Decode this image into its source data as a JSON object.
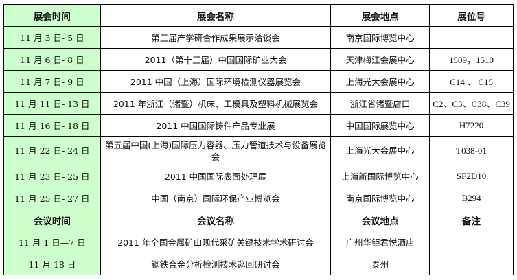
{
  "exhibitions": {
    "headers": [
      "展会时间",
      "展会名称",
      "展会地点",
      "展位号"
    ],
    "rows": [
      {
        "date": "11 月 3 日- 5 日",
        "name": "第三届产学研合作成果展示洽谈会",
        "venue": "南京国际博览中心",
        "booth": ""
      },
      {
        "date": "11 月 6 日- 8 日",
        "name": "2011（第十三届）中国国际矿业大会",
        "venue": "天津梅江会展中心",
        "booth": "1509，1510"
      },
      {
        "date": "11 月 7 日- 9 日",
        "name": "2011 中国（上海）国际环境检测仪器展览会",
        "venue": "上海光大会展中心",
        "booth": "C14 、 C15"
      },
      {
        "date": "11 月 11 日- 13 日",
        "name": "2011 年浙江（诸暨）机床、工模具及塑料机械展览会",
        "venue": "浙江省诸暨店口",
        "booth": "C2、C3、C38、C39"
      },
      {
        "date": "11 月 16 日- 18 日",
        "name": "2011 中国国际铸件产品专业展",
        "venue": "中国国际展览中心",
        "booth": "H7220"
      },
      {
        "date": "11 月 22 日- 24 日",
        "name": "第五届中国(上海)国际压力容器、压力管道技术与设备展览会",
        "venue": "上海光大会展中心",
        "booth": "T038-01"
      },
      {
        "date": "11 月 23 日- 25 日",
        "name": "2011 中国国际表面处理展",
        "venue": "上海新国际博览中心",
        "booth": "SF2D10"
      },
      {
        "date": "11 月 25 日- 27 日",
        "name": "中国（南京）国际环保产业博览会",
        "venue": "南京国际博览中心",
        "booth": "B294"
      }
    ]
  },
  "meetings": {
    "headers": [
      "会议时间",
      "会议名称",
      "会议地点",
      "备注"
    ],
    "rows": [
      {
        "date": "11 月 1 日—7 日",
        "name": "2011 年全国金属矿山现代采矿关键技术学术研讨会",
        "venue": "广州华钜君悦酒店",
        "note": ""
      },
      {
        "date": "11 月 18 日",
        "name": "钢铁合金分析检测技术巡回研讨会",
        "venue": "泰州",
        "note": ""
      }
    ]
  },
  "colors": {
    "date_column": "#ccffcc",
    "border": "#000000"
  }
}
